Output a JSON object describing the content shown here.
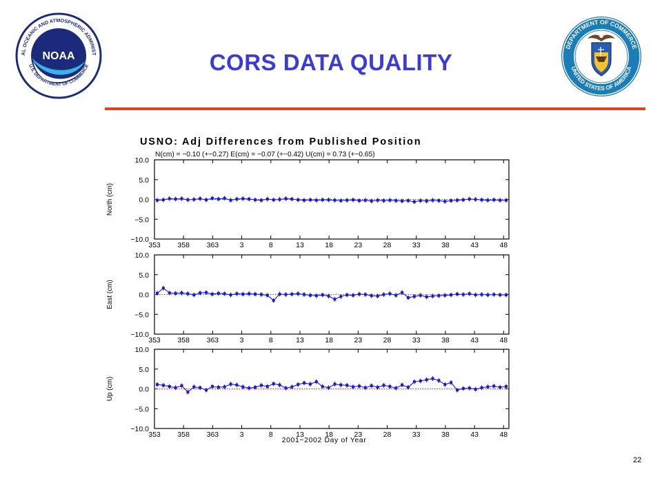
{
  "slide": {
    "title": "CORS DATA QUALITY",
    "page_number": "22",
    "accent_color": "#e8401c",
    "title_color": "#3b3bd8"
  },
  "logos": {
    "left": {
      "icon": "noaa-logo",
      "text_top": "NATIONAL OCEANIC AND ATMOSPHERIC ADMINISTRATION",
      "text_bottom": "U.S. DEPARTMENT OF COMMERCE",
      "center_text": "NOAA"
    },
    "right": {
      "icon": "department-of-commerce-seal",
      "text_top": "DEPARTMENT OF COMMERCE",
      "text_bottom": "UNITED STATES OF AMERICA"
    }
  },
  "chart_data": {
    "type": "line",
    "title": "USNO: Adj Differences from Published Position",
    "subtitle": "N(cm) = −0.10 (+−0.27)  E(cm) = −0.07 (+−0.42)  U(cm) = 0.73 (+−0.65)",
    "xlabel": "2001−2002 Day of Year",
    "x_tick_labels": [
      "353",
      "358",
      "363",
      "3",
      "8",
      "13",
      "18",
      "23",
      "28",
      "33",
      "38",
      "43",
      "48"
    ],
    "y_tick_labels": [
      "10.0",
      "5.0",
      "0.0",
      "−5.0",
      "−10.0"
    ],
    "ylim": [
      -10,
      10
    ],
    "series_color": "#1a1ad6",
    "reference_line_color": "#d92020",
    "grid": false,
    "panels": [
      {
        "ylabel": "North (cm)",
        "values": [
          -0.2,
          -0.1,
          0.2,
          0.1,
          0.2,
          -0.1,
          0.0,
          0.2,
          -0.1,
          0.3,
          0.1,
          0.3,
          -0.2,
          0.1,
          0.2,
          0.1,
          -0.1,
          -0.2,
          0.1,
          -0.1,
          0.0,
          0.2,
          0.1,
          -0.1,
          -0.2,
          -0.1,
          -0.2,
          -0.1,
          -0.1,
          -0.2,
          -0.3,
          -0.2,
          -0.1,
          -0.3,
          -0.2,
          -0.4,
          -0.2,
          -0.3,
          -0.2,
          -0.3,
          -0.4,
          -0.3,
          -0.6,
          -0.3,
          -0.4,
          -0.2,
          -0.3,
          -0.5,
          -0.3,
          -0.2,
          -0.1,
          0.1,
          0.0,
          -0.1,
          -0.2,
          -0.1,
          -0.2,
          -0.2
        ]
      },
      {
        "ylabel": "East (cm)",
        "values": [
          0.3,
          1.6,
          0.4,
          0.3,
          0.4,
          0.2,
          -0.1,
          0.4,
          0.5,
          0.1,
          0.3,
          0.2,
          -0.1,
          0.2,
          0.1,
          0.2,
          0.1,
          0.0,
          -0.2,
          -1.5,
          0.1,
          0.0,
          0.1,
          0.2,
          0.0,
          -0.2,
          -0.3,
          -0.1,
          -0.4,
          -1.2,
          -0.5,
          -0.1,
          -0.2,
          0.1,
          0.0,
          -0.3,
          -0.4,
          0.0,
          0.2,
          -0.2,
          0.5,
          -0.8,
          -0.5,
          -0.2,
          -0.6,
          -0.4,
          -0.3,
          -0.2,
          -0.1,
          0.1,
          0.0,
          0.2,
          -0.1,
          0.0,
          -0.1,
          0.0,
          -0.1,
          -0.1
        ]
      },
      {
        "ylabel": "Up (cm)",
        "values": [
          1.1,
          0.9,
          0.6,
          0.3,
          0.8,
          -0.8,
          0.5,
          0.3,
          -0.3,
          0.6,
          0.4,
          0.5,
          1.2,
          1.0,
          0.5,
          0.2,
          0.4,
          0.9,
          0.6,
          1.3,
          1.0,
          0.2,
          0.5,
          1.1,
          1.5,
          1.2,
          1.8,
          0.6,
          0.3,
          1.2,
          1.0,
          0.9,
          0.5,
          0.7,
          0.3,
          0.8,
          0.4,
          0.9,
          0.6,
          0.2,
          1.0,
          0.4,
          1.8,
          2.0,
          2.3,
          2.6,
          2.1,
          1.1,
          1.6,
          -0.3,
          0.1,
          0.2,
          -0.1,
          0.3,
          0.5,
          0.7,
          0.4,
          0.6
        ]
      }
    ]
  }
}
